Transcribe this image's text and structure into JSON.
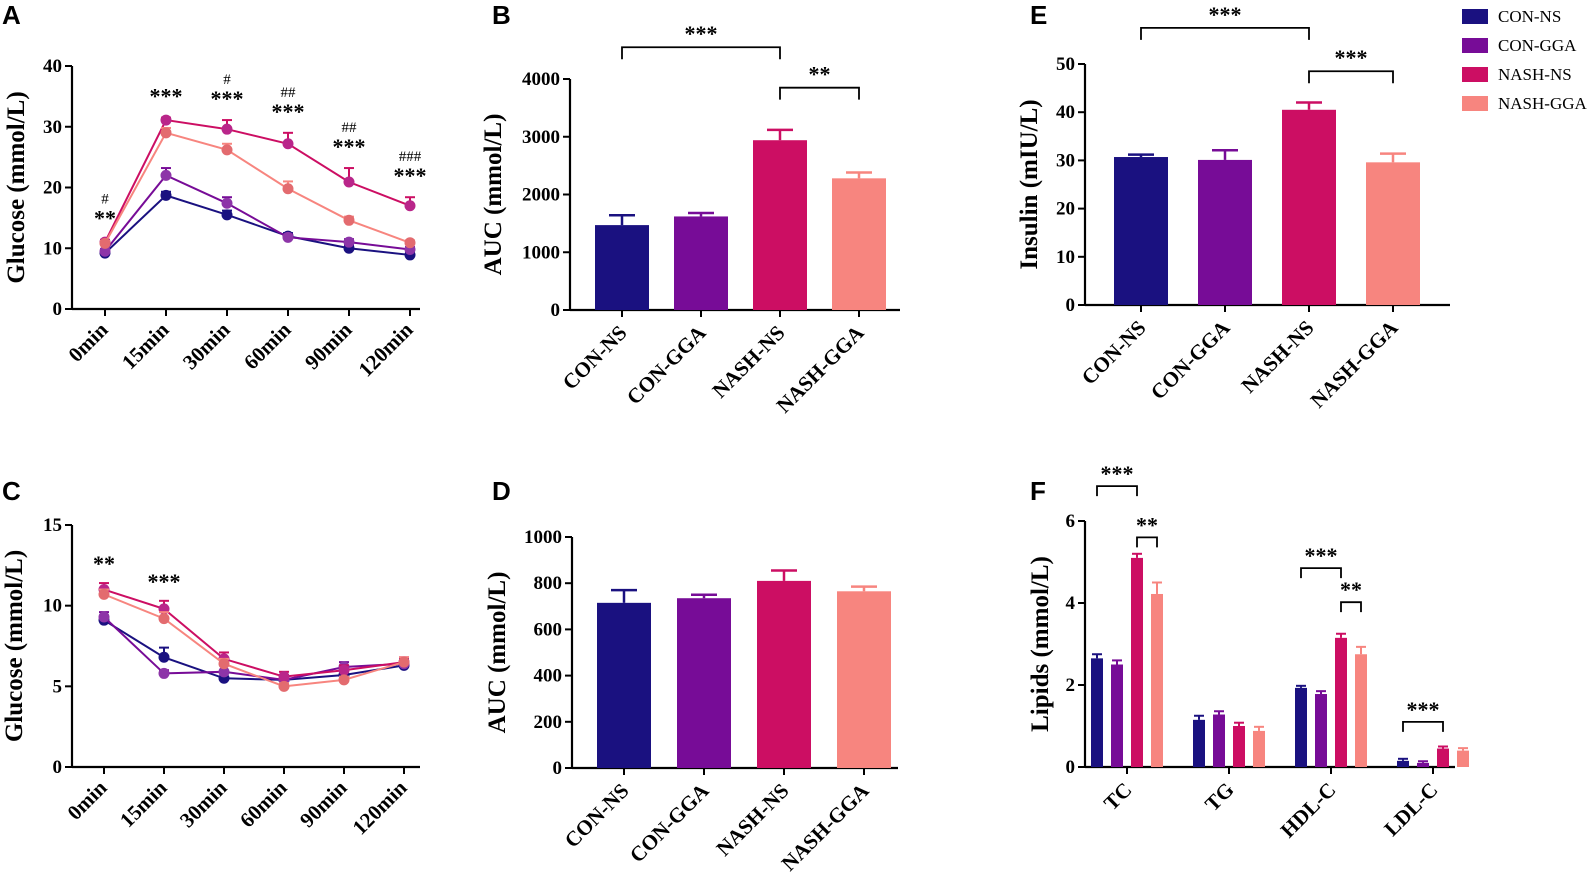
{
  "groups": [
    "CON-NS",
    "CON-GGA",
    "NASH-NS",
    "NASH-GGA"
  ],
  "colors": {
    "CON-NS": "#1a1180",
    "CON-GGA": "#770c97",
    "NASH-NS": "#cc0e63",
    "NASH-GGA": "#f7857f",
    "dot_CON-GGA": "#8d35a8",
    "dot_NASH-NS": "#b9268a",
    "dot_NASH-GGA": "#e36b6f"
  },
  "chart_data": [
    {
      "panel": "A",
      "type": "line",
      "ylabel": "Glucose (mmol/L)",
      "x": [
        "0min",
        "15min",
        "30min",
        "60min",
        "90min",
        "120min"
      ],
      "ylim": [
        0,
        40
      ],
      "yticks": [
        0,
        10,
        20,
        30,
        40
      ],
      "series": [
        {
          "name": "CON-NS",
          "values": [
            9.2,
            18.7,
            15.5,
            12.0,
            10.0,
            8.9
          ],
          "err": [
            0.4,
            0.6,
            0.7,
            0.5,
            0.5,
            0.4
          ]
        },
        {
          "name": "CON-GGA",
          "values": [
            9.5,
            22.0,
            17.4,
            11.8,
            11.0,
            9.8
          ],
          "err": [
            0.4,
            1.2,
            1.0,
            0.5,
            0.5,
            0.4
          ]
        },
        {
          "name": "NASH-NS",
          "values": [
            11.0,
            31.1,
            29.6,
            27.2,
            20.9,
            17.0
          ],
          "err": [
            0.4,
            0.4,
            1.5,
            1.8,
            2.3,
            1.4
          ]
        },
        {
          "name": "NASH-GGA",
          "values": [
            10.8,
            29.0,
            26.2,
            19.8,
            14.6,
            10.9
          ],
          "err": [
            0.4,
            0.8,
            1.0,
            1.2,
            0.6,
            0.4
          ]
        }
      ],
      "annotations": [
        {
          "x": "0min",
          "stars": "**",
          "hash": "#"
        },
        {
          "x": "15min",
          "stars": "***",
          "hash": ""
        },
        {
          "x": "30min",
          "stars": "***",
          "hash": "#"
        },
        {
          "x": "60min",
          "stars": "***",
          "hash": "##"
        },
        {
          "x": "90min",
          "stars": "***",
          "hash": "##"
        },
        {
          "x": "120min",
          "stars": "***",
          "hash": "###"
        }
      ]
    },
    {
      "panel": "B",
      "type": "bar",
      "ylabel": "AUC (mmol/L)",
      "categories": [
        "CON-NS",
        "CON-GGA",
        "NASH-NS",
        "NASH-GGA"
      ],
      "values": [
        1470,
        1620,
        2940,
        2280
      ],
      "err": [
        170,
        60,
        180,
        100
      ],
      "ylim": [
        0,
        4000
      ],
      "yticks": [
        0,
        1000,
        2000,
        3000,
        4000
      ],
      "brackets": [
        {
          "from": 0,
          "to": 2,
          "label": "***",
          "level": 4550
        },
        {
          "from": 2,
          "to": 3,
          "label": "**",
          "level": 3850
        }
      ]
    },
    {
      "panel": "C",
      "type": "line",
      "ylabel": "Glucose (mmol/L)",
      "x": [
        "0min",
        "15min",
        "30min",
        "60min",
        "90min",
        "120min"
      ],
      "ylim": [
        0,
        15
      ],
      "yticks": [
        0,
        5,
        10,
        15
      ],
      "series": [
        {
          "name": "CON-NS",
          "values": [
            9.1,
            6.8,
            5.5,
            5.4,
            5.7,
            6.3
          ],
          "err": [
            0.3,
            0.6,
            0.3,
            0.2,
            0.3,
            0.3
          ]
        },
        {
          "name": "CON-GGA",
          "values": [
            9.3,
            5.8,
            5.9,
            5.4,
            6.2,
            6.4
          ],
          "err": [
            0.3,
            0.2,
            0.4,
            0.3,
            0.3,
            0.3
          ]
        },
        {
          "name": "NASH-NS",
          "values": [
            11.0,
            9.8,
            6.7,
            5.6,
            6.0,
            6.5
          ],
          "err": [
            0.4,
            0.5,
            0.4,
            0.3,
            0.3,
            0.3
          ]
        },
        {
          "name": "NASH-GGA",
          "values": [
            10.7,
            9.2,
            6.4,
            5.0,
            5.4,
            6.5
          ],
          "err": [
            0.3,
            0.4,
            0.3,
            0.2,
            0.2,
            0.3
          ]
        }
      ],
      "annotations": [
        {
          "x": "0min",
          "stars": "**",
          "hash": ""
        },
        {
          "x": "15min",
          "stars": "***",
          "hash": ""
        }
      ]
    },
    {
      "panel": "D",
      "type": "bar",
      "ylabel": "AUC (mmol/L)",
      "categories": [
        "CON-NS",
        "CON-GGA",
        "NASH-NS",
        "NASH-GGA"
      ],
      "values": [
        715,
        735,
        810,
        765
      ],
      "err": [
        55,
        15,
        45,
        20
      ],
      "ylim": [
        0,
        1000
      ],
      "yticks": [
        0,
        200,
        400,
        600,
        800,
        1000
      ],
      "brackets": []
    },
    {
      "panel": "E",
      "type": "bar",
      "ylabel": "Insulin (mIU/L)",
      "categories": [
        "CON-NS",
        "CON-GGA",
        "NASH-NS",
        "NASH-GGA"
      ],
      "values": [
        30.7,
        30.1,
        40.5,
        29.6
      ],
      "err": [
        0.5,
        2.0,
        1.5,
        1.8
      ],
      "ylim": [
        0,
        50
      ],
      "yticks": [
        0,
        10,
        20,
        30,
        40,
        50
      ],
      "brackets": [
        {
          "from": 0,
          "to": 2,
          "label": "***",
          "level": 57.5
        },
        {
          "from": 2,
          "to": 3,
          "label": "***",
          "level": 48.5
        }
      ]
    },
    {
      "panel": "F",
      "type": "bar",
      "ylabel": "Lipids (mmol/L)",
      "categories": [
        "TC",
        "TG",
        "HDL-C",
        "LDL-C"
      ],
      "series": [
        {
          "name": "CON-NS",
          "values": [
            2.65,
            1.15,
            1.93,
            0.15
          ],
          "err": [
            0.1,
            0.1,
            0.05,
            0.05
          ]
        },
        {
          "name": "CON-GGA",
          "values": [
            2.5,
            1.28,
            1.78,
            0.1
          ],
          "err": [
            0.1,
            0.08,
            0.07,
            0.04
          ]
        },
        {
          "name": "NASH-NS",
          "values": [
            5.1,
            1.0,
            3.15,
            0.45
          ],
          "err": [
            0.1,
            0.08,
            0.1,
            0.05
          ]
        },
        {
          "name": "NASH-GGA",
          "values": [
            4.22,
            0.88,
            2.75,
            0.4
          ],
          "err": [
            0.28,
            0.1,
            0.18,
            0.06
          ]
        }
      ],
      "ylim": [
        0,
        6
      ],
      "yticks": [
        0,
        2,
        4,
        6
      ],
      "brackets": [
        {
          "cat": 0,
          "from": 0,
          "to": 2,
          "label": "***",
          "level": 6.85
        },
        {
          "cat": 0,
          "from": 2,
          "to": 3,
          "label": "**",
          "level": 5.6
        },
        {
          "cat": 2,
          "from": 0,
          "to": 2,
          "label": "***",
          "level": 4.85
        },
        {
          "cat": 2,
          "from": 2,
          "to": 3,
          "label": "**",
          "level": 4.02
        },
        {
          "cat": 3,
          "from": 0,
          "to": 2,
          "label": "***",
          "level": 1.1
        }
      ]
    }
  ]
}
